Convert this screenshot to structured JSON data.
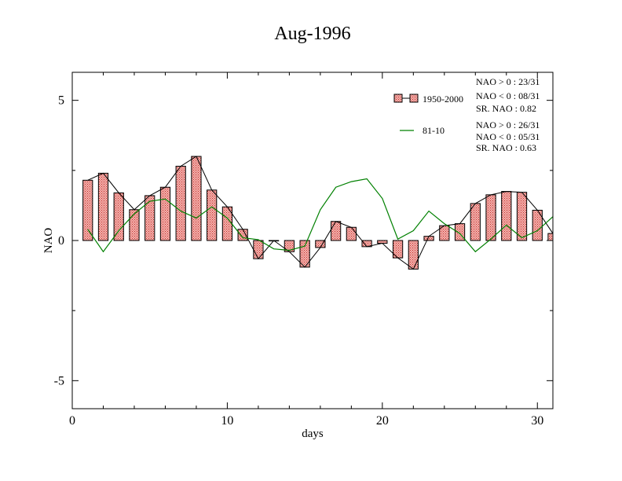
{
  "chart_data": {
    "type": "bar",
    "title": "Aug-1996",
    "xlabel": "days",
    "ylabel": "NAO",
    "xlim": [
      0,
      31
    ],
    "ylim": [
      -6,
      6
    ],
    "x_ticks": [
      0,
      10,
      20,
      30
    ],
    "y_ticks": [
      -5,
      0,
      5
    ],
    "x_tick_labels": [
      "0",
      "10",
      "20",
      "30"
    ],
    "y_tick_labels": [
      "-5",
      "0",
      "5"
    ],
    "x": [
      1,
      2,
      3,
      4,
      5,
      6,
      7,
      8,
      9,
      10,
      11,
      12,
      13,
      14,
      15,
      16,
      17,
      18,
      19,
      20,
      21,
      22,
      23,
      24,
      25,
      26,
      27,
      28,
      29,
      30,
      31
    ],
    "series": [
      {
        "name": "1950-2000",
        "type": "bar",
        "color": "#e8706c",
        "values": [
          2.15,
          2.4,
          1.7,
          1.1,
          1.6,
          1.9,
          2.65,
          3.0,
          1.8,
          1.2,
          0.4,
          -0.65,
          0.0,
          -0.4,
          -0.95,
          -0.25,
          0.68,
          0.47,
          -0.22,
          -0.1,
          -0.62,
          -1.02,
          0.15,
          0.53,
          0.6,
          1.32,
          1.63,
          1.75,
          1.72,
          1.08,
          0.25
        ]
      },
      {
        "name": "81-10",
        "type": "line",
        "color": "#008000",
        "values": [
          0.4,
          -0.4,
          0.35,
          0.95,
          1.4,
          1.48,
          1.05,
          0.8,
          1.2,
          0.8,
          0.1,
          0.03,
          -0.3,
          -0.35,
          -0.2,
          1.1,
          1.9,
          2.1,
          2.2,
          1.5,
          0.05,
          0.35,
          1.05,
          0.6,
          0.25,
          -0.4,
          0.05,
          0.55,
          0.1,
          0.35,
          0.85
        ]
      }
    ],
    "legend": [
      {
        "label": "1950-2000",
        "stats": [
          "NAO > 0 :  23/31",
          "NAO < 0 : 08/31",
          "SR. NAO :  0.82"
        ]
      },
      {
        "label": "81-10",
        "stats": [
          "NAO > 0 :  26/31",
          "NAO < 0 : 05/31",
          "SR. NAO :  0.63"
        ]
      }
    ],
    "legend_position": "top-right",
    "grid": false
  }
}
